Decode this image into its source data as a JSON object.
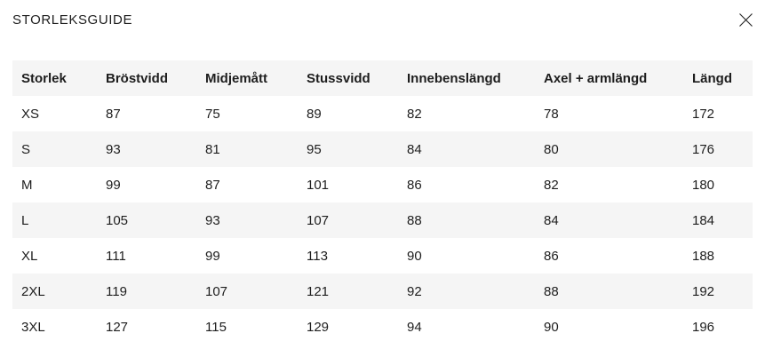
{
  "dialog": {
    "title": "STORLEKSGUIDE"
  },
  "table": {
    "columns": [
      "Storlek",
      "Bröstvidd",
      "Midjemått",
      "Stussvidd",
      "Innebenslängd",
      "Axel + armlängd",
      "Längd"
    ],
    "rows": [
      [
        "XS",
        "87",
        "75",
        "89",
        "82",
        "78",
        "172"
      ],
      [
        "S",
        "93",
        "81",
        "95",
        "84",
        "80",
        "176"
      ],
      [
        "M",
        "99",
        "87",
        "101",
        "86",
        "82",
        "180"
      ],
      [
        "L",
        "105",
        "93",
        "107",
        "88",
        "84",
        "184"
      ],
      [
        "XL",
        "111",
        "99",
        "113",
        "90",
        "86",
        "188"
      ],
      [
        "2XL",
        "119",
        "107",
        "121",
        "92",
        "88",
        "192"
      ],
      [
        "3XL",
        "127",
        "115",
        "129",
        "94",
        "90",
        "196"
      ]
    ]
  },
  "colors": {
    "row_alt_bg": "#f5f5f5",
    "text": "#1d1d1d",
    "background": "#ffffff"
  }
}
